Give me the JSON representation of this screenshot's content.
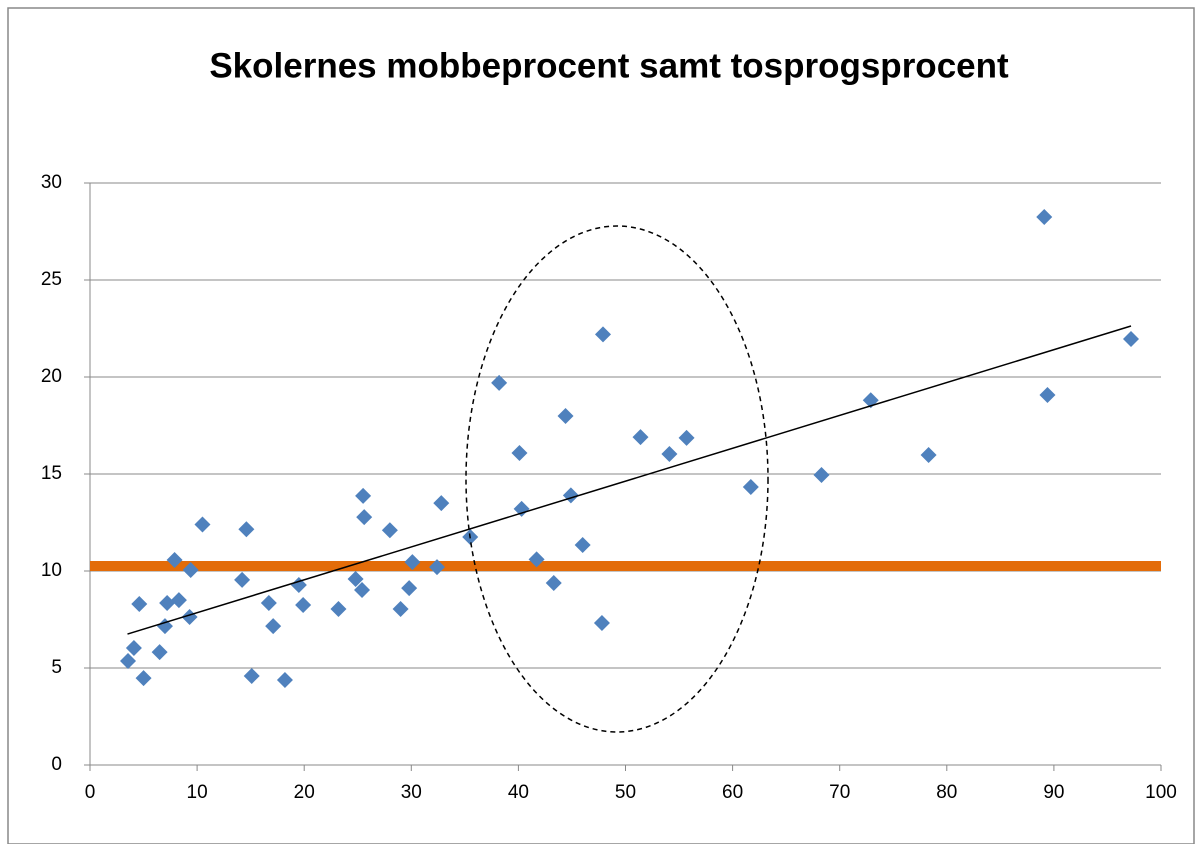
{
  "chart_data": {
    "type": "scatter",
    "title": "Skolernes mobbeprocent samt tosprogsprocent",
    "x": [
      3.55,
      4.1,
      4.6,
      5.0,
      6.5,
      7.0,
      7.2,
      7.9,
      8.3,
      9.3,
      9.4,
      10.5,
      14.2,
      14.6,
      15.1,
      16.7,
      17.1,
      18.2,
      19.5,
      19.9,
      23.2,
      24.8,
      25.4,
      25.5,
      25.6,
      28.0,
      29.0,
      29.8,
      30.1,
      32.4,
      32.8,
      35.5,
      38.2,
      40.1,
      40.3,
      41.7,
      43.3,
      44.4,
      44.9,
      46.0,
      47.8,
      47.9,
      51.4,
      54.1,
      55.7,
      61.7,
      68.3,
      72.9,
      78.3,
      89.1,
      89.4,
      97.2
    ],
    "values": [
      5.36,
      6.03,
      8.3,
      4.48,
      5.82,
      7.16,
      8.35,
      10.57,
      8.5,
      7.63,
      10.05,
      12.4,
      9.54,
      12.15,
      4.59,
      8.35,
      7.16,
      4.38,
      9.28,
      8.25,
      8.04,
      9.59,
      9.02,
      13.87,
      12.78,
      12.1,
      8.04,
      9.12,
      10.46,
      10.2,
      13.5,
      11.75,
      19.7,
      16.08,
      13.2,
      10.6,
      9.38,
      17.99,
      13.9,
      11.34,
      7.32,
      22.2,
      16.9,
      16.03,
      16.86,
      14.33,
      14.95,
      18.8,
      15.98,
      28.25,
      19.07,
      21.96
    ],
    "color": "#4f81bd",
    "trendline": {
      "x": [
        3.5,
        97.2
      ],
      "y": [
        6.75,
        22.63
      ],
      "color": "#000000"
    },
    "reference_line": {
      "y": 10.26,
      "color": "#e36c09"
    },
    "xlim": [
      0,
      100
    ],
    "xticks": [
      0,
      10,
      20,
      30,
      40,
      50,
      60,
      70,
      80,
      90,
      100
    ],
    "ylim": [
      0,
      30
    ],
    "yticks": [
      0,
      5,
      10,
      15,
      20,
      25,
      30
    ],
    "grid": true
  }
}
